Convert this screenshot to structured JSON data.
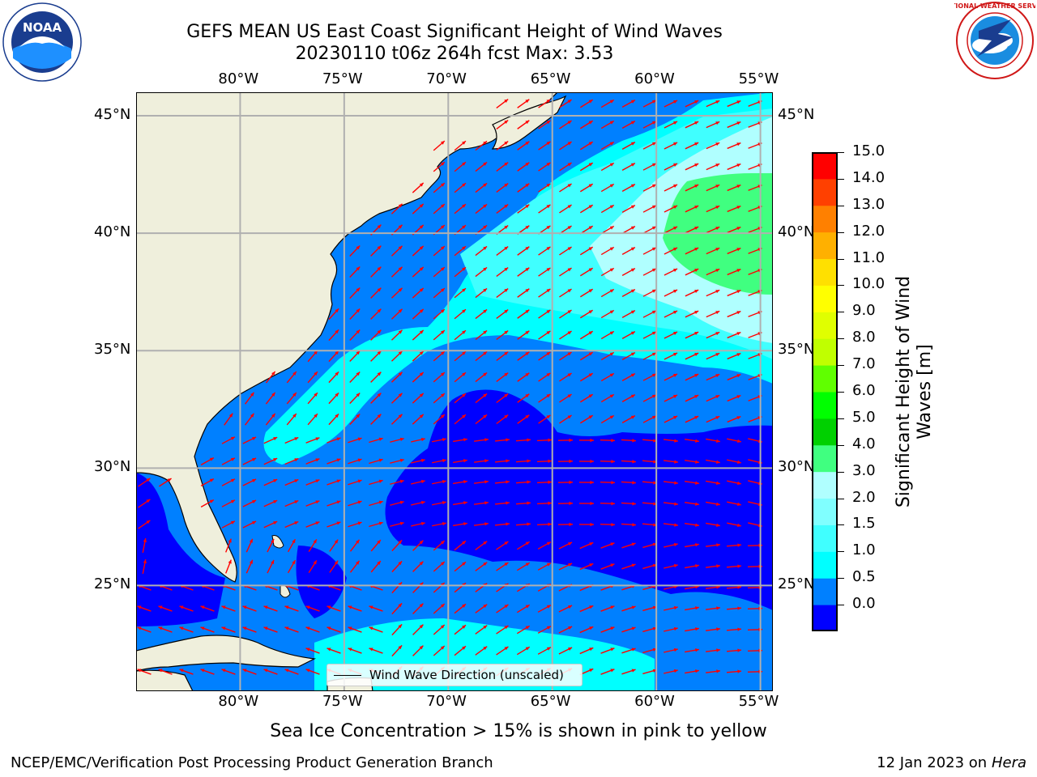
{
  "header": {
    "title_line1": "GEFS MEAN US East Coast Significant Height of Wind Waves",
    "title_line2": "20230110 t06z 264h fcst   Max: 3.53"
  },
  "logos": {
    "left": {
      "name": "noaa-logo",
      "text": "NOAA",
      "ring": "NATIONAL OCEANIC AND ATMOSPHERIC ADMINISTRATION · U.S. DEPARTMENT OF COMMERCE"
    },
    "right": {
      "name": "nws-logo",
      "ring": "NATIONAL WEATHER SERVICE"
    }
  },
  "map": {
    "lon_labels": [
      "80°W",
      "75°W",
      "70°W",
      "65°W",
      "60°W",
      "55°W"
    ],
    "lat_labels": [
      "45°N",
      "40°N",
      "35°N",
      "30°N",
      "25°N"
    ],
    "lon_range": [
      -85,
      -54.4
    ],
    "lat_range": [
      20.5,
      46
    ],
    "legend_label": "Wind Wave Direction (unscaled)",
    "arrow_color": "#ff0000",
    "land_color": "#efefdc"
  },
  "colorbar": {
    "title": "Significant Height of Wind Waves [m]",
    "labels": [
      "15.0",
      "14.0",
      "13.0",
      "12.0",
      "11.0",
      "10.0",
      "9.0",
      "8.0",
      "7.0",
      "6.0",
      "5.0",
      "4.0",
      "3.0",
      "2.0",
      "1.5",
      "1.0",
      "0.5",
      "0.0"
    ],
    "colors_bottom_up": [
      "#0000ff",
      "#0080ff",
      "#00ffff",
      "#40ffff",
      "#80ffff",
      "#b0ffff",
      "#40ff80",
      "#00d000",
      "#00ff00",
      "#60ff00",
      "#c0ff00",
      "#e0ff00",
      "#ffff00",
      "#ffe000",
      "#ffb000",
      "#ff8000",
      "#ff4000",
      "#ff0000"
    ]
  },
  "footer": {
    "note": "Sea Ice Concentration > 15% is shown in pink to yellow",
    "credit": "NCEP/EMC/Verification Post Processing Product Generation Branch",
    "date": "12 Jan 2023 on ",
    "machine": "Hera"
  }
}
